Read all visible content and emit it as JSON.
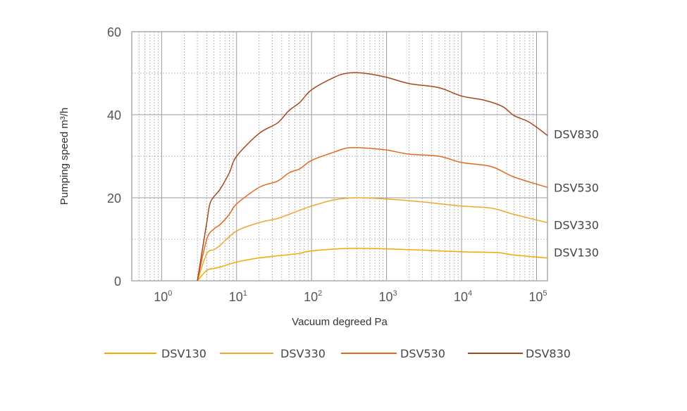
{
  "chart_data": {
    "type": "line",
    "title": "",
    "xlabel": "Vacuum degreed Pa",
    "ylabel": "Pumping speed m³/h",
    "x_scale": "log",
    "xlim": [
      0.4,
      140000
    ],
    "ylim": [
      0,
      60
    ],
    "grid": true,
    "legend_position": "bottom",
    "y_ticks": [
      "0",
      "20",
      "40",
      "60"
    ],
    "y_tick_values": [
      0,
      20,
      40,
      60
    ],
    "x_ticks": [
      {
        "base": "10",
        "exp": "0",
        "value": 1
      },
      {
        "base": "10",
        "exp": "1",
        "value": 10
      },
      {
        "base": "10",
        "exp": "2",
        "value": 100
      },
      {
        "base": "10",
        "exp": "3",
        "value": 1000
      },
      {
        "base": "10",
        "exp": "4",
        "value": 10000
      },
      {
        "base": "10",
        "exp": "5",
        "value": 100000
      }
    ],
    "series": [
      {
        "name": "DSV130",
        "color": "#f5a800",
        "x": [
          3,
          4,
          5,
          6,
          10,
          20,
          50,
          70,
          100,
          300,
          1000,
          10000,
          30000,
          50000,
          140000
        ],
        "y": [
          0,
          2.5,
          3,
          3.3,
          4.5,
          5.5,
          6.3,
          6.6,
          7.2,
          7.8,
          7.7,
          7,
          6.8,
          6.2,
          5.5
        ]
      },
      {
        "name": "DSV330",
        "color": "#f0a530",
        "x": [
          3,
          4,
          5,
          6,
          10,
          20,
          35,
          50,
          70,
          100,
          200,
          400,
          1000,
          3000,
          10000,
          25000,
          50000,
          140000
        ],
        "y": [
          0,
          6.5,
          7.5,
          8.5,
          12,
          14,
          15,
          16,
          17,
          18,
          19.5,
          20,
          19.7,
          19,
          18,
          17.5,
          16,
          14
        ]
      },
      {
        "name": "DSV530",
        "color": "#e2691e",
        "x": [
          3,
          4,
          5,
          6,
          8,
          10,
          20,
          35,
          50,
          70,
          100,
          200,
          300,
          500,
          1000,
          2000,
          5000,
          10000,
          25000,
          50000,
          140000
        ],
        "y": [
          0,
          10,
          12.5,
          13.5,
          16,
          18.5,
          22.5,
          24,
          26,
          27,
          29,
          31,
          32,
          32,
          31.5,
          30.5,
          30,
          28.5,
          27.5,
          25,
          22.5
        ]
      },
      {
        "name": "DSV830",
        "color": "#a4481c",
        "x": [
          3,
          4,
          4.5,
          6,
          8,
          10,
          20,
          35,
          50,
          70,
          100,
          200,
          300,
          500,
          1000,
          2000,
          5000,
          10000,
          20000,
          35000,
          50000,
          80000,
          140000
        ],
        "y": [
          0,
          14,
          19,
          22,
          26,
          30,
          35.5,
          38,
          41,
          43,
          46,
          49,
          50,
          50,
          49,
          47.5,
          46.5,
          44.5,
          43.5,
          42,
          39.8,
          38.2,
          35
        ]
      }
    ]
  }
}
